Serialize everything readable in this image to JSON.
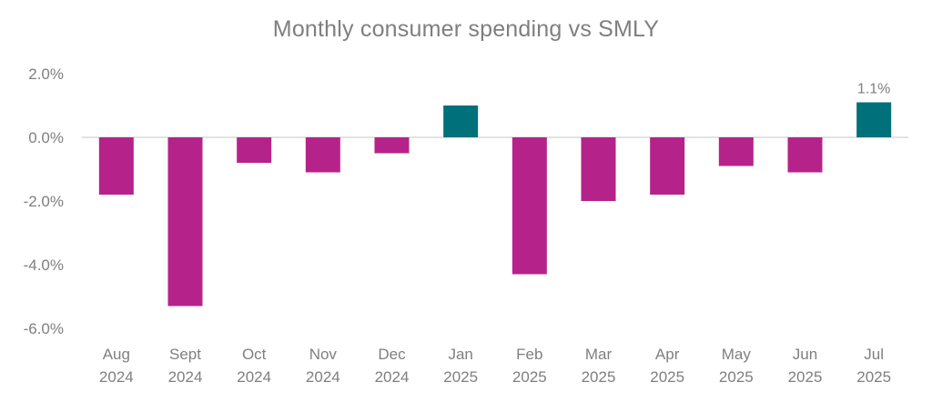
{
  "chart_data": {
    "type": "bar",
    "title": "Monthly consumer spending vs SMLY",
    "xlabel": "",
    "ylabel": "",
    "ylim": [
      -6.0,
      2.0
    ],
    "yticks": [
      "2.0%",
      "0.0%",
      "-2.0%",
      "-4.0%",
      "-6.0%"
    ],
    "ytick_values": [
      2.0,
      0.0,
      -2.0,
      -4.0,
      -6.0
    ],
    "categories": [
      [
        "Aug",
        "2024"
      ],
      [
        "Sept",
        "2024"
      ],
      [
        "Oct",
        "2024"
      ],
      [
        "Nov",
        "2024"
      ],
      [
        "Dec",
        "2024"
      ],
      [
        "Jan",
        "2025"
      ],
      [
        "Feb",
        "2025"
      ],
      [
        "Mar",
        "2025"
      ],
      [
        "Apr",
        "2025"
      ],
      [
        "May",
        "2025"
      ],
      [
        "Jun",
        "2025"
      ],
      [
        "Jul",
        "2025"
      ]
    ],
    "values": [
      -1.8,
      -5.3,
      -0.8,
      -1.1,
      -0.5,
      1.0,
      -4.3,
      -2.0,
      -1.8,
      -0.9,
      -1.1,
      1.1
    ],
    "data_labels": [
      {
        "index": 11,
        "text": "1.1%"
      }
    ],
    "grid": false,
    "colors": {
      "negative": "#b5238a",
      "positive": "#00707a",
      "axis_text": "#7f7f7f",
      "zero_line": "#d9d9d9"
    }
  }
}
